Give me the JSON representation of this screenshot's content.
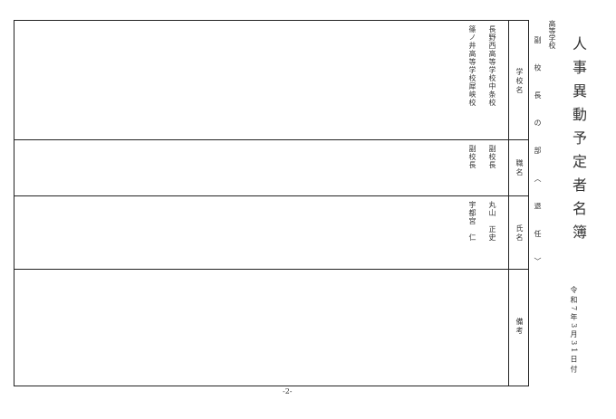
{
  "title": "人事異動予定者名簿",
  "school_type": "高等学校",
  "section": "副 校 長 の 部 〈 退 任 〉",
  "date": "令和7年3月31日付",
  "page_number": "-2-",
  "headers": {
    "school": "学校名",
    "position": "職名",
    "name": "氏名",
    "notes": "備考"
  },
  "entries": [
    {
      "school": "長野西高等学校中条校",
      "position": "副校長",
      "name": "丸山　正史"
    },
    {
      "school": "篠ノ井高等学校犀峡校",
      "position": "副校長",
      "name": "宇都宮　仁"
    }
  ]
}
